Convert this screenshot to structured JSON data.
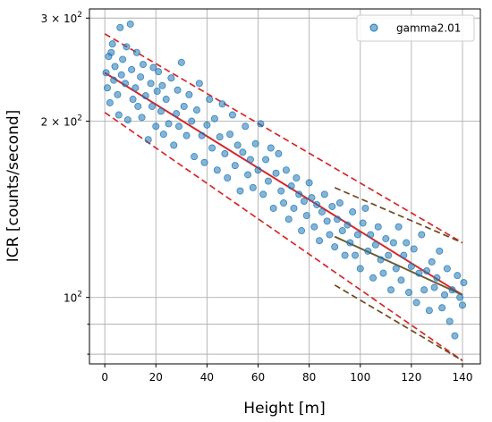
{
  "chart_data": {
    "type": "scatter",
    "title": "",
    "xlabel": "Height [m]",
    "ylabel": "ICR [counts/second]",
    "xlim": [
      -6,
      147
    ],
    "ylim": [
      77,
      311
    ],
    "y_scale": "log",
    "grid": true,
    "legend_position": "top-right",
    "x_ticks": [
      0,
      20,
      40,
      60,
      80,
      100,
      120,
      140
    ],
    "x_tick_labels": [
      "0",
      "20",
      "40",
      "60",
      "80",
      "100",
      "120",
      "140"
    ],
    "y_ticks_major": [
      100,
      200,
      300
    ],
    "y_tick_labels": [
      {
        "base": "10",
        "exp": "2"
      },
      {
        "base": "2 × 10",
        "exp": "2"
      },
      {
        "base": "3 × 10",
        "exp": "2"
      }
    ],
    "y_ticks_minor": [
      80,
      90
    ],
    "series": [
      {
        "name": "gamma2.01",
        "color": "#1f77b4",
        "points": [
          [
            0.5,
            242
          ],
          [
            1,
            228
          ],
          [
            1.5,
            258
          ],
          [
            2,
            215
          ],
          [
            2.5,
            262
          ],
          [
            3,
            271
          ],
          [
            3.5,
            235
          ],
          [
            4,
            248
          ],
          [
            5,
            222
          ],
          [
            5.5,
            205
          ],
          [
            6,
            289
          ],
          [
            6.5,
            240
          ],
          [
            7,
            255
          ],
          [
            8,
            232
          ],
          [
            8.5,
            268
          ],
          [
            9,
            201
          ],
          [
            10,
            293
          ],
          [
            10.5,
            245
          ],
          [
            11,
            218
          ],
          [
            12,
            228
          ],
          [
            12.5,
            262
          ],
          [
            13,
            212
          ],
          [
            14,
            238
          ],
          [
            14.5,
            203
          ],
          [
            15,
            250
          ],
          [
            16,
            221
          ],
          [
            17,
            186
          ],
          [
            18,
            232
          ],
          [
            18.5,
            212
          ],
          [
            19,
            247
          ],
          [
            20,
            196
          ],
          [
            20.5,
            225
          ],
          [
            21,
            243
          ],
          [
            22,
            208
          ],
          [
            22.5,
            230
          ],
          [
            23,
            190
          ],
          [
            24,
            218
          ],
          [
            25,
            198
          ],
          [
            26,
            237
          ],
          [
            27,
            182
          ],
          [
            28,
            206
          ],
          [
            28.5,
            226
          ],
          [
            29,
            196
          ],
          [
            30,
            252
          ],
          [
            31,
            212
          ],
          [
            32,
            189
          ],
          [
            33,
            222
          ],
          [
            34,
            200
          ],
          [
            35,
            174
          ],
          [
            36,
            209
          ],
          [
            37,
            232
          ],
          [
            38,
            189
          ],
          [
            39,
            170
          ],
          [
            40,
            197
          ],
          [
            41,
            218
          ],
          [
            42,
            180
          ],
          [
            43,
            202
          ],
          [
            44,
            165
          ],
          [
            45,
            188
          ],
          [
            46,
            214
          ],
          [
            47,
            176
          ],
          [
            48,
            160
          ],
          [
            49,
            190
          ],
          [
            50,
            205
          ],
          [
            51,
            168
          ],
          [
            52,
            182
          ],
          [
            53,
            152
          ],
          [
            54,
            177
          ],
          [
            55,
            196
          ],
          [
            56,
            162
          ],
          [
            57,
            172
          ],
          [
            58,
            154
          ],
          [
            59,
            183
          ],
          [
            60,
            165
          ],
          [
            61,
            198
          ],
          [
            62,
            150
          ],
          [
            63,
            172
          ],
          [
            64,
            158
          ],
          [
            65,
            180
          ],
          [
            66,
            142
          ],
          [
            67,
            163
          ],
          [
            68,
            176
          ],
          [
            69,
            152
          ],
          [
            70,
            145
          ],
          [
            71,
            165
          ],
          [
            72,
            136
          ],
          [
            73,
            155
          ],
          [
            74,
            142
          ],
          [
            75,
            160
          ],
          [
            76,
            150
          ],
          [
            77,
            130
          ],
          [
            78,
            146
          ],
          [
            79,
            138
          ],
          [
            80,
            157
          ],
          [
            81,
            148
          ],
          [
            82,
            132
          ],
          [
            83,
            144
          ],
          [
            84,
            125
          ],
          [
            85,
            140
          ],
          [
            86,
            150
          ],
          [
            87,
            135
          ],
          [
            88,
            128
          ],
          [
            89,
            143
          ],
          [
            90,
            122
          ],
          [
            91,
            136
          ],
          [
            92,
            145
          ],
          [
            93,
            130
          ],
          [
            94,
            118
          ],
          [
            95,
            133
          ],
          [
            96,
            124
          ],
          [
            97,
            140
          ],
          [
            98,
            118
          ],
          [
            99,
            128
          ],
          [
            100,
            112
          ],
          [
            101,
            134
          ],
          [
            102,
            142
          ],
          [
            103,
            120
          ],
          [
            104,
            128
          ],
          [
            105,
            108
          ],
          [
            106,
            123
          ],
          [
            107,
            132
          ],
          [
            108,
            116
          ],
          [
            109,
            110
          ],
          [
            110,
            126
          ],
          [
            111,
            118
          ],
          [
            112,
            103
          ],
          [
            113,
            124
          ],
          [
            114,
            112
          ],
          [
            115,
            132
          ],
          [
            116,
            107
          ],
          [
            117,
            118
          ],
          [
            118,
            124
          ],
          [
            119,
            102
          ],
          [
            120,
            113
          ],
          [
            121,
            121
          ],
          [
            122,
            98
          ],
          [
            123,
            110
          ],
          [
            124,
            128
          ],
          [
            125,
            103
          ],
          [
            126,
            111
          ],
          [
            127,
            95
          ],
          [
            128,
            115
          ],
          [
            129,
            104
          ],
          [
            130,
            108
          ],
          [
            131,
            120
          ],
          [
            132,
            96
          ],
          [
            133,
            101
          ],
          [
            134,
            112
          ],
          [
            135,
            91
          ],
          [
            136,
            103
          ],
          [
            137,
            86
          ],
          [
            138,
            109
          ],
          [
            139,
            100
          ],
          [
            140,
            97
          ],
          [
            140.5,
            106
          ]
        ]
      }
    ],
    "lines": [
      {
        "style": "solid",
        "color": "#d62728",
        "x": [
          0,
          140
        ],
        "y": [
          242,
          101
        ]
      },
      {
        "style": "dashed",
        "color": "#d62728",
        "x": [
          0,
          140
        ],
        "y": [
          282,
          124
        ]
      },
      {
        "style": "dashed",
        "color": "#d62728",
        "x": [
          0,
          140
        ],
        "y": [
          207,
          78
        ]
      },
      {
        "style": "solid",
        "color": "#6b5a2c",
        "x": [
          90,
          140
        ],
        "y": [
          127,
          101
        ]
      },
      {
        "style": "dashed",
        "color": "#6b4a1c",
        "x": [
          90,
          140
        ],
        "y": [
          154,
          124
        ]
      },
      {
        "style": "dashed",
        "color": "#6b4a1c",
        "x": [
          90,
          140
        ],
        "y": [
          105,
          78
        ]
      }
    ]
  }
}
